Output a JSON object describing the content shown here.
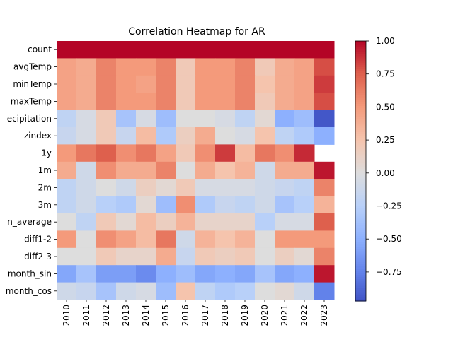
{
  "chart_data": {
    "type": "heatmap",
    "title": "Correlation Heatmap for AR",
    "xlabel": "",
    "ylabel": "",
    "x": [
      "2010",
      "2011",
      "2012",
      "2013",
      "2014",
      "2015",
      "2016",
      "2017",
      "2018",
      "2019",
      "2020",
      "2021",
      "2022",
      "2023"
    ],
    "y": [
      "count",
      "avgTemp",
      "minTemp",
      "maxTemp",
      "precipitation",
      "zindex",
      "1y",
      "1m",
      "2m",
      "3m",
      "mean_average",
      "diff1-2",
      "diff2-3",
      "month_sin",
      "month_cos"
    ],
    "y_tick_labels": [
      "count",
      "avgTemp",
      "minTemp",
      "maxTemp",
      "ecipitation",
      "zindex",
      "1y",
      "1m",
      "2m",
      "3m",
      "n_average",
      "diff1-2",
      "diff2-3",
      "month_sin",
      "month_cos"
    ],
    "values": [
      [
        1.0,
        1.0,
        1.0,
        1.0,
        1.0,
        1.0,
        1.0,
        1.0,
        1.0,
        1.0,
        1.0,
        1.0,
        1.0,
        1.0
      ],
      [
        0.45,
        0.4,
        0.6,
        0.5,
        0.5,
        0.6,
        0.2,
        0.5,
        0.5,
        0.6,
        0.2,
        0.4,
        0.45,
        0.8
      ],
      [
        0.45,
        0.4,
        0.6,
        0.5,
        0.45,
        0.6,
        0.2,
        0.5,
        0.5,
        0.6,
        0.25,
        0.4,
        0.45,
        0.85
      ],
      [
        0.45,
        0.4,
        0.6,
        0.5,
        0.5,
        0.6,
        0.2,
        0.5,
        0.5,
        0.6,
        0.2,
        0.4,
        0.45,
        0.8
      ],
      [
        -0.2,
        -0.05,
        0.2,
        -0.35,
        -0.05,
        -0.4,
        0.0,
        0.0,
        -0.05,
        -0.2,
        0.05,
        -0.5,
        -0.4,
        -0.95
      ],
      [
        -0.15,
        -0.05,
        0.2,
        -0.15,
        0.3,
        -0.3,
        0.15,
        0.4,
        0.0,
        -0.05,
        0.25,
        -0.2,
        -0.3,
        -0.5
      ],
      [
        0.5,
        0.65,
        0.75,
        0.55,
        0.65,
        0.45,
        0.2,
        0.55,
        0.85,
        0.3,
        0.65,
        0.55,
        0.9,
        null
      ],
      [
        0.4,
        -0.1,
        0.55,
        0.4,
        0.4,
        0.6,
        0.0,
        0.4,
        0.25,
        0.35,
        -0.1,
        0.4,
        0.4,
        0.95
      ],
      [
        -0.2,
        -0.1,
        0.0,
        -0.1,
        0.15,
        0.05,
        0.2,
        -0.05,
        -0.05,
        -0.05,
        -0.1,
        -0.15,
        -0.2,
        0.6
      ],
      [
        -0.2,
        -0.1,
        -0.25,
        -0.3,
        0.05,
        -0.4,
        0.55,
        -0.3,
        -0.15,
        -0.2,
        -0.1,
        -0.35,
        -0.25,
        0.35
      ],
      [
        0.0,
        -0.2,
        0.2,
        0.05,
        0.3,
        0.15,
        0.35,
        0.1,
        0.1,
        0.1,
        -0.25,
        -0.05,
        -0.05,
        0.75
      ],
      [
        0.5,
        0.0,
        0.55,
        0.45,
        0.3,
        0.65,
        -0.1,
        0.35,
        0.25,
        0.35,
        0.0,
        0.5,
        0.5,
        0.5
      ],
      [
        0.0,
        0.0,
        0.2,
        0.1,
        0.1,
        0.4,
        -0.15,
        0.2,
        0.15,
        0.2,
        0.0,
        0.15,
        0.05,
        0.6
      ],
      [
        -0.55,
        -0.35,
        -0.6,
        -0.6,
        -0.7,
        -0.5,
        -0.4,
        -0.55,
        -0.5,
        -0.55,
        -0.35,
        -0.55,
        -0.5,
        0.95
      ],
      [
        -0.1,
        -0.15,
        -0.35,
        -0.1,
        -0.05,
        -0.4,
        0.25,
        -0.2,
        -0.3,
        -0.25,
        0.0,
        0.05,
        -0.1,
        -0.75
      ]
    ],
    "vmin": -1.0,
    "vmax": 1.0,
    "colormap": "coolwarm",
    "colorbar_ticks": [
      1.0,
      0.75,
      0.5,
      0.25,
      0.0,
      -0.25,
      -0.5,
      -0.75
    ],
    "colorbar_tick_labels": [
      "1.00",
      "0.75",
      "0.50",
      "0.25",
      "0.00",
      "−0.25",
      "−0.50",
      "−0.75"
    ],
    "grid": false,
    "legend": "colorbar-right"
  }
}
